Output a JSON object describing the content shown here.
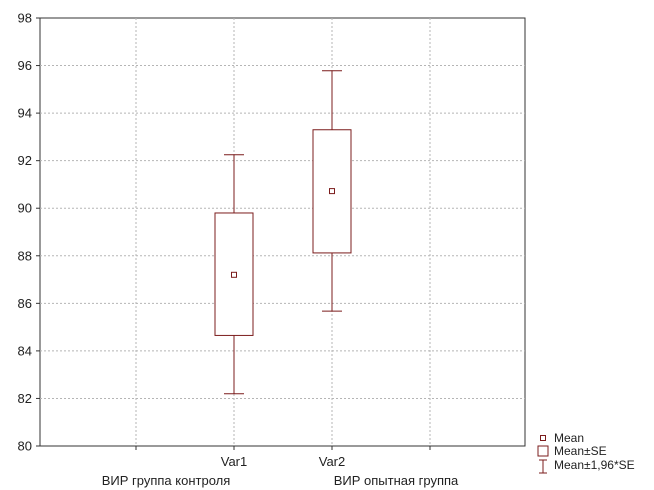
{
  "chart_data": {
    "type": "box",
    "categories": [
      "Var1",
      "Var2"
    ],
    "category_descriptions": [
      "ВИР группа контроля",
      "ВИР опытная группа"
    ],
    "series": [
      {
        "name": "Var1",
        "mean": 87.2,
        "se_low": 84.65,
        "se_high": 89.8,
        "ci_low": 82.2,
        "ci_high": 92.25
      },
      {
        "name": "Var2",
        "mean": 90.72,
        "se_low": 88.12,
        "se_high": 93.3,
        "ci_low": 85.67,
        "ci_high": 95.78
      }
    ],
    "ylim": [
      80,
      98
    ],
    "yticks": [
      80,
      82,
      84,
      86,
      88,
      90,
      92,
      94,
      96,
      98
    ],
    "grid": true,
    "legend_position": "bottom-right",
    "legend": [
      "Mean",
      "Mean±SE",
      "Mean±1,96*SE"
    ],
    "title": "",
    "xlabel": "",
    "ylabel": "",
    "color": "#7b1c1c"
  }
}
